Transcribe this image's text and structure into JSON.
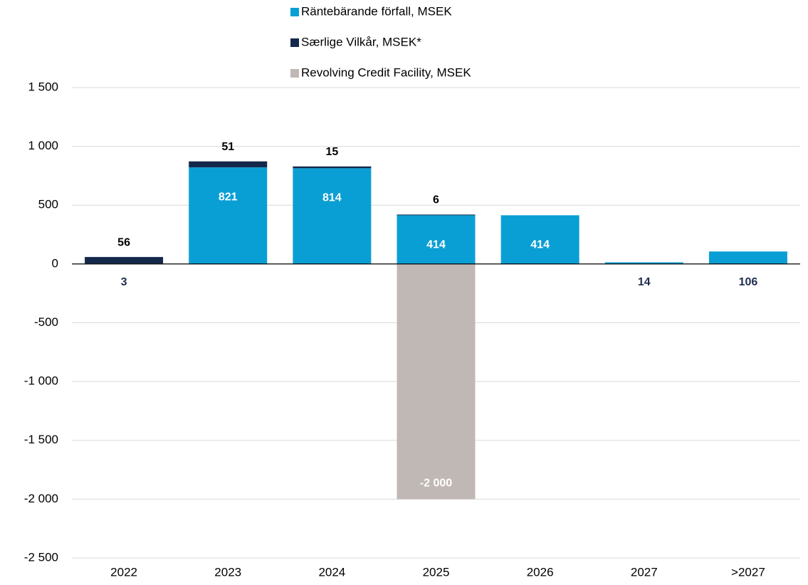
{
  "chart_data": {
    "type": "stacked_bar",
    "categories": [
      "2022",
      "2023",
      "2024",
      "2025",
      "2026",
      "2027",
      ">2027"
    ],
    "series": [
      {
        "name": "Räntebärande förfall, MSEK",
        "color": "#0a9fd4",
        "values": [
          3,
          821,
          814,
          414,
          414,
          14,
          106
        ]
      },
      {
        "name": "Særlige Vilkår, MSEK*",
        "color": "#13284b",
        "values": [
          56,
          51,
          15,
          6,
          null,
          null,
          null
        ]
      },
      {
        "name": "Revolving Credit Facility, MSEK",
        "color": "#c0b8b5",
        "values": [
          null,
          null,
          null,
          -2000,
          null,
          null,
          null
        ],
        "value_labels": [
          null,
          null,
          null,
          "-2 000",
          null,
          null,
          null
        ]
      }
    ],
    "ylim": [
      -2500,
      1500
    ],
    "yticks": [
      {
        "value": -2500,
        "label": "-2 500"
      },
      {
        "value": -2000,
        "label": "-2 000"
      },
      {
        "value": -1500,
        "label": "-1 500"
      },
      {
        "value": -1000,
        "label": "-1 000"
      },
      -500,
      0,
      500,
      {
        "value": 1000,
        "label": "1 000"
      },
      {
        "value": 1500,
        "label": "1 500"
      }
    ],
    "grid": true,
    "legend": "top"
  }
}
